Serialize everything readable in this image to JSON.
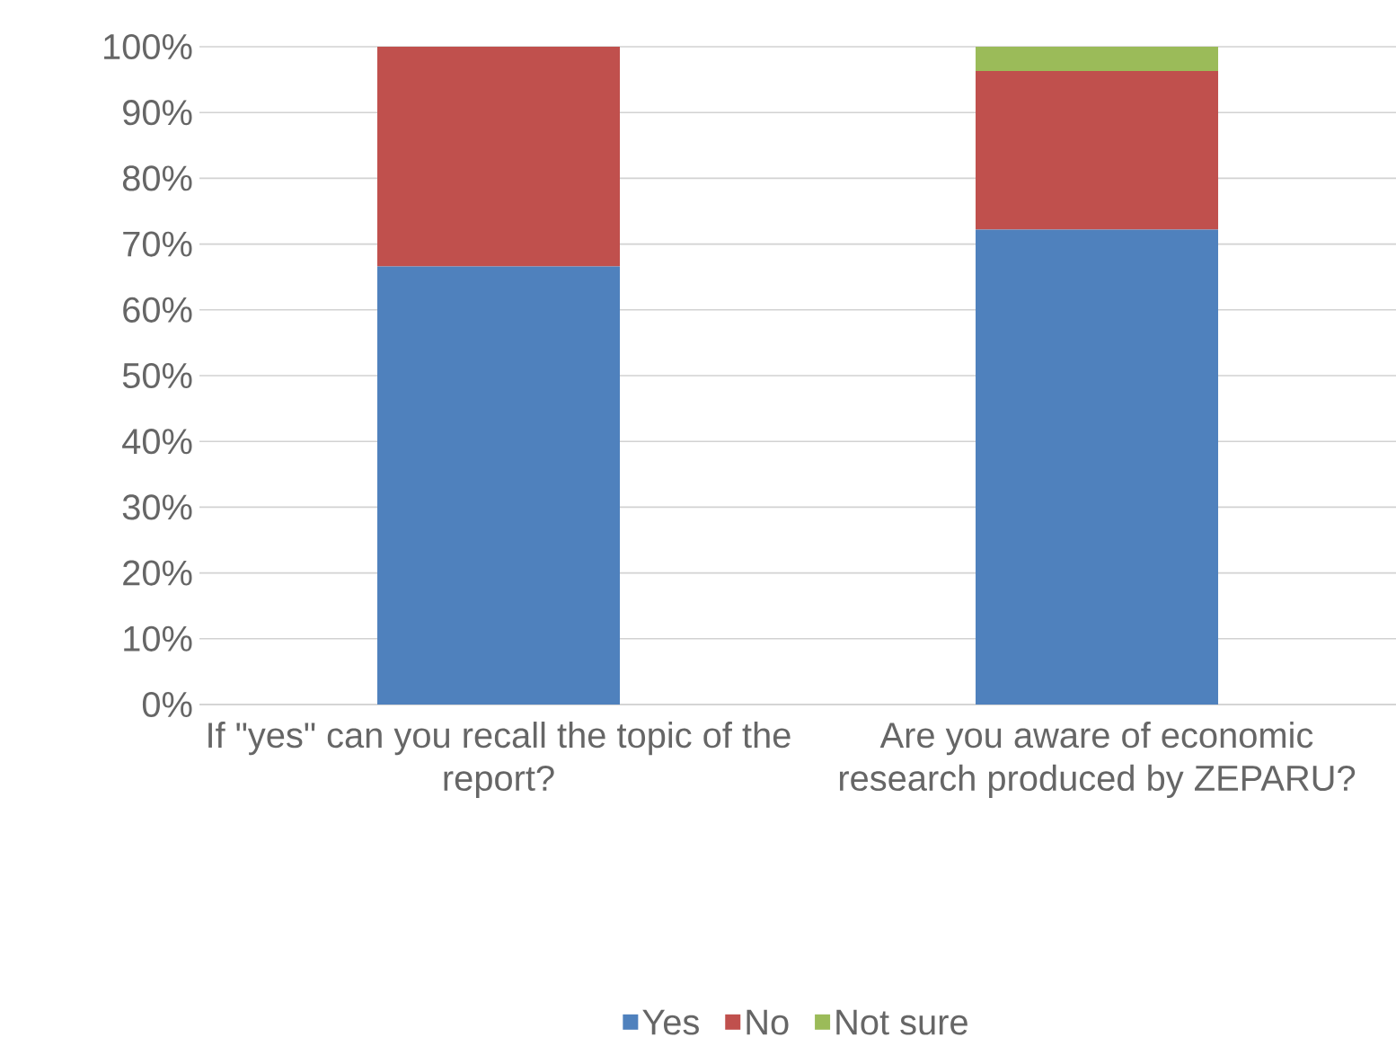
{
  "chart_data": {
    "type": "bar",
    "stacked": true,
    "categories": [
      "If \"yes\" can you recall the topic of the report?",
      "Are you aware of economic research produced by ZEPARU?"
    ],
    "series": [
      {
        "name": "Yes",
        "color": "#4f81bd",
        "values": [
          66.6,
          72.2
        ]
      },
      {
        "name": "No",
        "color": "#c0504d",
        "values": [
          33.4,
          24.1
        ]
      },
      {
        "name": "Not sure",
        "color": "#9bbb59",
        "values": [
          0,
          3.7
        ]
      }
    ],
    "ylim": [
      0,
      100
    ],
    "yticks": [
      {
        "value": 0,
        "label": "0%"
      },
      {
        "value": 10,
        "label": "10%"
      },
      {
        "value": 20,
        "label": "20%"
      },
      {
        "value": 30,
        "label": "30%"
      },
      {
        "value": 40,
        "label": "40%"
      },
      {
        "value": 50,
        "label": "50%"
      },
      {
        "value": 60,
        "label": "60%"
      },
      {
        "value": 70,
        "label": "70%"
      },
      {
        "value": 80,
        "label": "80%"
      },
      {
        "value": 90,
        "label": "90%"
      },
      {
        "value": 100,
        "label": "100%"
      }
    ],
    "grid": "y",
    "legend": "bottom"
  }
}
